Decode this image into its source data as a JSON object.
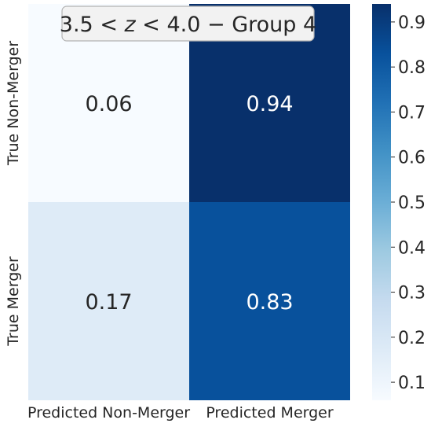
{
  "chart_data": {
    "type": "heatmap",
    "title": "3.5 < z < 4.0 − Group 4",
    "title_parts": {
      "a": "3.5 < ",
      "z": "z",
      "b": " < 4.0 − Group 4"
    },
    "x_categories": [
      "Predicted Non-Merger",
      "Predicted Merger"
    ],
    "y_categories": [
      "True Non-Merger",
      "True Merger"
    ],
    "values": [
      [
        0.06,
        0.94
      ],
      [
        0.17,
        0.83
      ]
    ],
    "cell_labels": [
      [
        "0.06",
        "0.94"
      ],
      [
        "0.17",
        "0.83"
      ]
    ],
    "colormap": "Blues",
    "colorbar": {
      "min": 0.06,
      "max": 0.94,
      "ticks": [
        0.1,
        0.2,
        0.3,
        0.4,
        0.5,
        0.6,
        0.7,
        0.8,
        0.9
      ],
      "tick_labels": [
        "0.1",
        "0.2",
        "0.3",
        "0.4",
        "0.5",
        "0.6",
        "0.7",
        "0.8",
        "0.9"
      ]
    },
    "colors": {
      "light_text": "#ffffff",
      "dark_text": "#262626",
      "title_box_fill": "#f2f2f2",
      "title_box_stroke": "#b3b3b3"
    }
  }
}
